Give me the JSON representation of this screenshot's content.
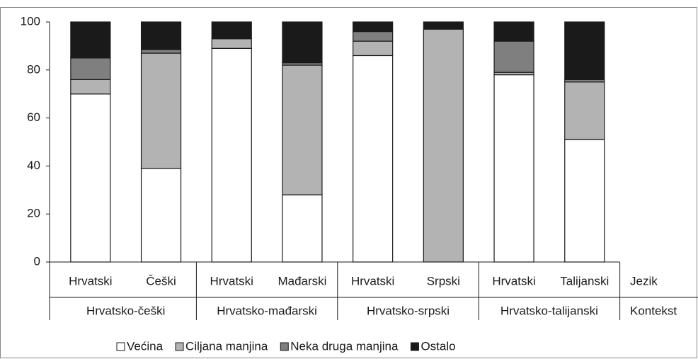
{
  "chart_data": {
    "type": "stacked_bar",
    "categories": [
      "Hrvatski",
      "Češki",
      "Hrvatski",
      "Mađarski",
      "Hrvatski",
      "Srpski",
      "Hrvatski",
      "Talijanski"
    ],
    "groups": [
      "Hrvatsko-češki",
      "Hrvatsko-mađarski",
      "Hrvatsko-srpski",
      "Hrvatsko-talijanski"
    ],
    "level_labels": [
      "Jezik",
      "Kontekst"
    ],
    "series": [
      {
        "name": "Većina",
        "color": "#ffffff",
        "values": [
          70,
          39,
          89,
          28,
          86,
          0,
          78,
          51
        ]
      },
      {
        "name": "Ciljana manjina",
        "color": "#b3b3b3",
        "values": [
          6,
          48,
          4,
          54,
          6,
          97,
          1,
          24
        ]
      },
      {
        "name": "Neka druga manjina",
        "color": "#7f7f7f",
        "values": [
          9,
          1.5,
          0,
          1,
          4,
          0,
          13,
          1
        ]
      },
      {
        "name": "Ostalo",
        "color": "#1a1a1a",
        "values": [
          15,
          11.5,
          7,
          17,
          4,
          3,
          8,
          24
        ]
      }
    ],
    "ylim": [
      0,
      100
    ],
    "yticks": [
      0,
      20,
      40,
      60,
      80,
      100
    ],
    "legend": "bottom"
  }
}
